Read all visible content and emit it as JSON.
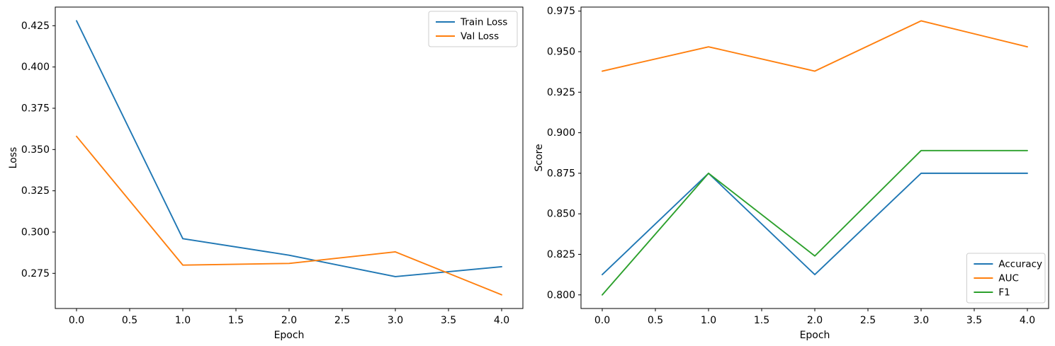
{
  "figure": {
    "background": "#ffffff",
    "description": "Two line charts: training/validation loss and evaluation scores per epoch"
  },
  "chart_data": [
    {
      "type": "line",
      "title": "",
      "xlabel": "Epoch",
      "ylabel": "Loss",
      "x": [
        0,
        1,
        2,
        3,
        4
      ],
      "series": [
        {
          "name": "Train Loss",
          "color": "#1f77b4",
          "values": [
            0.428,
            0.296,
            0.286,
            0.273,
            0.279
          ]
        },
        {
          "name": "Val Loss",
          "color": "#ff7f0e",
          "values": [
            0.358,
            0.28,
            0.281,
            0.288,
            0.262
          ]
        }
      ],
      "xlim": [
        -0.2,
        4.2
      ],
      "ylim": [
        0.2537,
        0.4363
      ],
      "xticks": [
        0.0,
        0.5,
        1.0,
        1.5,
        2.0,
        2.5,
        3.0,
        3.5,
        4.0
      ],
      "xticklabels": [
        "0.0",
        "0.5",
        "1.0",
        "1.5",
        "2.0",
        "2.5",
        "3.0",
        "3.5",
        "4.0"
      ],
      "yticks": [
        0.275,
        0.3,
        0.325,
        0.35,
        0.375,
        0.4,
        0.425
      ],
      "yticklabels": [
        "0.275",
        "0.300",
        "0.325",
        "0.350",
        "0.375",
        "0.400",
        "0.425"
      ],
      "grid": false,
      "legend": {
        "position": "upper-right",
        "entries": [
          "Train Loss",
          "Val Loss"
        ]
      }
    },
    {
      "type": "line",
      "title": "",
      "xlabel": "Epoch",
      "ylabel": "Score",
      "x": [
        0,
        1,
        2,
        3,
        4
      ],
      "series": [
        {
          "name": "Accuracy",
          "color": "#1f77b4",
          "values": [
            0.8125,
            0.875,
            0.8125,
            0.875,
            0.875
          ]
        },
        {
          "name": "AUC",
          "color": "#ff7f0e",
          "values": [
            0.938,
            0.953,
            0.938,
            0.969,
            0.953
          ]
        },
        {
          "name": "F1",
          "color": "#2ca02c",
          "values": [
            0.8,
            0.875,
            0.824,
            0.889,
            0.889
          ]
        }
      ],
      "xlim": [
        -0.2,
        4.2
      ],
      "ylim": [
        0.7916,
        0.9775
      ],
      "xticks": [
        0.0,
        0.5,
        1.0,
        1.5,
        2.0,
        2.5,
        3.0,
        3.5,
        4.0
      ],
      "xticklabels": [
        "0.0",
        "0.5",
        "1.0",
        "1.5",
        "2.0",
        "2.5",
        "3.0",
        "3.5",
        "4.0"
      ],
      "yticks": [
        0.8,
        0.825,
        0.85,
        0.875,
        0.9,
        0.925,
        0.95,
        0.975
      ],
      "yticklabels": [
        "0.800",
        "0.825",
        "0.850",
        "0.875",
        "0.900",
        "0.925",
        "0.950",
        "0.975"
      ],
      "grid": false,
      "legend": {
        "position": "lower-right",
        "entries": [
          "Accuracy",
          "AUC",
          "F1"
        ]
      }
    }
  ],
  "style": {
    "spine_color": "#000000",
    "tick_color": "#000000",
    "legend_edge_color": "#cccccc",
    "legend_face_color": "rgba(255,255,255,0.8)"
  }
}
